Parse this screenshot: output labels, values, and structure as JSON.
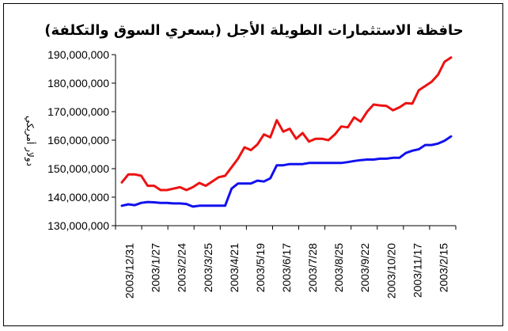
{
  "chart_data": {
    "type": "line",
    "title": "حافظة الاستثمارات الطويلة الأجل (بسعري السوق والتكلفة)",
    "xlabel": "",
    "ylabel": "دولار أمريكي",
    "ylim": [
      130000000,
      190000000
    ],
    "ytick_labels": [
      "130,000,000",
      "140,000,000",
      "150,000,000",
      "160,000,000",
      "170,000,000",
      "180,000,000",
      "190,000,000"
    ],
    "xtick_labels": [
      "2003/12/31",
      "2003/1/27",
      "2003/2/24",
      "2003/3/25",
      "2003/4/21",
      "2003/5/19",
      "2003/6/17",
      "2003/7/28",
      "2003/8/25",
      "2003/9/22",
      "2003/10/20",
      "2003/11/17",
      "2003/2/15"
    ],
    "grid": false,
    "series": [
      {
        "color": "#ee1111",
        "values": [
          145200000,
          148000000,
          148000000,
          147500000,
          144000000,
          144000000,
          142500000,
          142500000,
          143000000,
          143500000,
          142500000,
          143500000,
          145000000,
          144000000,
          145500000,
          147000000,
          147500000,
          150500000,
          153500000,
          157500000,
          156500000,
          158500000,
          162000000,
          161000000,
          167000000,
          163000000,
          164000000,
          160500000,
          162500000,
          159500000,
          160500000,
          160500000,
          160000000,
          162000000,
          164800000,
          164500000,
          168000000,
          166500000,
          170000000,
          172500000,
          172200000,
          172000000,
          170500000,
          171500000,
          173000000,
          172800000,
          177500000,
          179000000,
          180500000,
          183000000,
          187500000,
          189000000
        ]
      },
      {
        "color": "#1111ee",
        "values": [
          137000000,
          137500000,
          137200000,
          138000000,
          138300000,
          138200000,
          138000000,
          138000000,
          137800000,
          137800000,
          137600000,
          136700000,
          137000000,
          137000000,
          137000000,
          137000000,
          137000000,
          143000000,
          144800000,
          144800000,
          144800000,
          145800000,
          145500000,
          146600000,
          151200000,
          151200000,
          151600000,
          151600000,
          151600000,
          152000000,
          152000000,
          152000000,
          152000000,
          152000000,
          152000000,
          152300000,
          152700000,
          153000000,
          153200000,
          153200000,
          153500000,
          153500000,
          153800000,
          153800000,
          155500000,
          156300000,
          156800000,
          158300000,
          158300000,
          158800000,
          159800000,
          161300000
        ]
      }
    ]
  },
  "colors": {
    "axis": "#000000",
    "plot_background": "#ffffff"
  }
}
